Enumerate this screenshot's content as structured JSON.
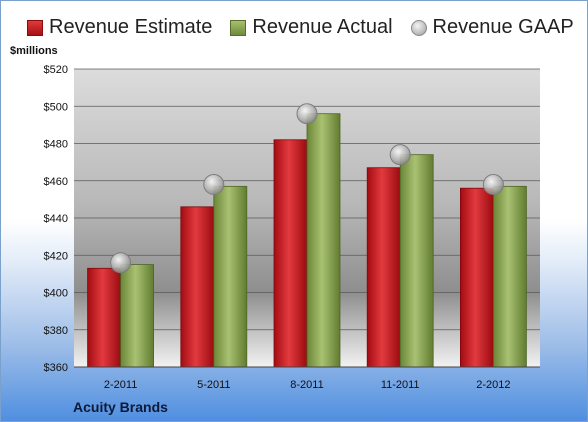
{
  "chart_data": {
    "type": "bar",
    "ylabel": "$millions",
    "ylim": [
      360,
      520
    ],
    "yticks": [
      360,
      380,
      400,
      420,
      440,
      460,
      480,
      500,
      520
    ],
    "ytick_labels": [
      "$360",
      "$380",
      "$400",
      "$420",
      "$440",
      "$460",
      "$480",
      "$500",
      "$520"
    ],
    "categories": [
      "2-2011",
      "5-2011",
      "8-2011",
      "11-2011",
      "2-2012"
    ],
    "series": [
      {
        "name": "Revenue Estimate",
        "kind": "bar",
        "color": "#c8191f",
        "values": [
          413,
          446,
          482,
          467,
          456
        ]
      },
      {
        "name": "Revenue Actual",
        "kind": "bar",
        "color": "#7f9a48",
        "values": [
          415,
          457,
          496,
          474,
          457
        ]
      },
      {
        "name": "Revenue GAAP",
        "kind": "marker",
        "color": "#b8b8b8",
        "values": [
          416,
          458,
          496,
          474,
          458
        ]
      }
    ],
    "grid": true,
    "legend": "top",
    "footer": "Acuity Brands"
  }
}
